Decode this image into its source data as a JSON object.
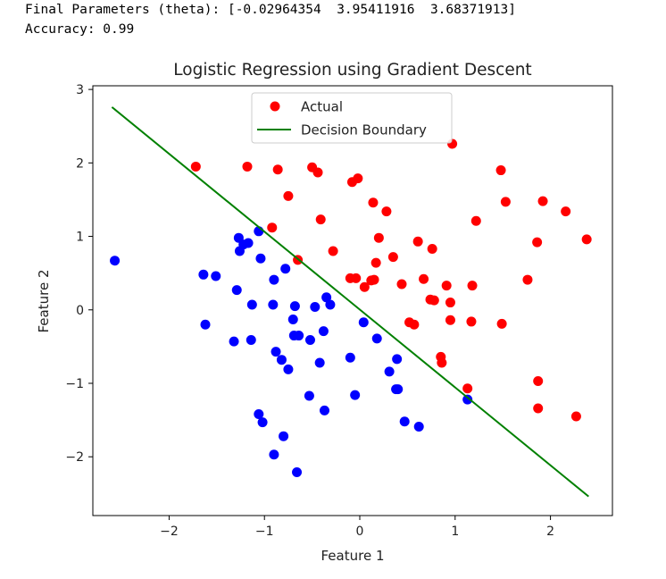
{
  "console": {
    "line1": "Final Parameters (theta): [-0.02964354  3.95411916  3.68371913]",
    "line2": "Accuracy: 0.99"
  },
  "chart_data": {
    "type": "scatter",
    "title": "Logistic Regression using Gradient Descent",
    "xlabel": "Feature 1",
    "ylabel": "Feature 2",
    "xlim": [
      -2.8,
      2.65
    ],
    "ylim": [
      -2.8,
      3.05
    ],
    "xticks": [
      -2,
      -1,
      0,
      1,
      2
    ],
    "yticks": [
      -2,
      -1,
      0,
      1,
      2,
      3
    ],
    "xtick_labels": [
      "−2",
      "−1",
      "0",
      "1",
      "2"
    ],
    "ytick_labels": [
      "−2",
      "−1",
      "0",
      "1",
      "2",
      "3"
    ],
    "legend_position": "top-center",
    "colors": {
      "actual_1": "#ff0000",
      "actual_0": "#0000ff",
      "boundary": "#008000"
    },
    "legend": [
      {
        "label": "Actual",
        "marker": "dot",
        "color": "#ff0000"
      },
      {
        "label": "Decision Boundary",
        "marker": "line",
        "color": "#008000"
      }
    ],
    "decision_boundary": {
      "x": [
        -2.6,
        2.4
      ],
      "y": [
        2.76,
        -2.54
      ]
    },
    "series": [
      {
        "name": "Actual",
        "class": 1,
        "color": "#ff0000",
        "points": [
          [
            -1.72,
            1.95
          ],
          [
            -1.18,
            1.95
          ],
          [
            -0.86,
            1.91
          ],
          [
            -0.5,
            1.94
          ],
          [
            -0.44,
            1.87
          ],
          [
            -0.75,
            1.55
          ],
          [
            -0.08,
            1.74
          ],
          [
            -0.02,
            1.79
          ],
          [
            0.97,
            2.26
          ],
          [
            1.48,
            1.9
          ],
          [
            0.14,
            1.46
          ],
          [
            0.28,
            1.34
          ],
          [
            -0.41,
            1.23
          ],
          [
            -0.92,
            1.12
          ],
          [
            1.53,
            1.47
          ],
          [
            1.92,
            1.48
          ],
          [
            2.16,
            1.34
          ],
          [
            1.22,
            1.21
          ],
          [
            2.38,
            0.96
          ],
          [
            0.2,
            0.98
          ],
          [
            0.61,
            0.93
          ],
          [
            0.76,
            0.83
          ],
          [
            1.86,
            0.92
          ],
          [
            -0.28,
            0.8
          ],
          [
            0.35,
            0.72
          ],
          [
            -0.65,
            0.68
          ],
          [
            0.17,
            0.64
          ],
          [
            -0.1,
            0.43
          ],
          [
            -0.04,
            0.43
          ],
          [
            0.12,
            0.4
          ],
          [
            0.15,
            0.41
          ],
          [
            0.05,
            0.31
          ],
          [
            0.44,
            0.35
          ],
          [
            0.67,
            0.42
          ],
          [
            0.91,
            0.33
          ],
          [
            1.18,
            0.33
          ],
          [
            1.76,
            0.41
          ],
          [
            0.74,
            0.14
          ],
          [
            0.78,
            0.13
          ],
          [
            0.95,
            0.1
          ],
          [
            0.52,
            -0.17
          ],
          [
            0.57,
            -0.2
          ],
          [
            0.95,
            -0.14
          ],
          [
            1.17,
            -0.16
          ],
          [
            1.49,
            -0.19
          ],
          [
            0.85,
            -0.64
          ],
          [
            0.86,
            -0.72
          ],
          [
            1.87,
            -0.97
          ],
          [
            1.13,
            -1.07
          ],
          [
            1.87,
            -1.34
          ],
          [
            2.27,
            -1.45
          ]
        ]
      },
      {
        "name": "",
        "class": 0,
        "color": "#0000ff",
        "points": [
          [
            -2.57,
            0.67
          ],
          [
            -1.64,
            0.48
          ],
          [
            -1.51,
            0.46
          ],
          [
            -1.29,
            0.27
          ],
          [
            -1.13,
            0.07
          ],
          [
            -1.27,
            0.98
          ],
          [
            -1.22,
            0.89
          ],
          [
            -1.26,
            0.8
          ],
          [
            -1.17,
            0.91
          ],
          [
            -1.06,
            1.07
          ],
          [
            -1.04,
            0.7
          ],
          [
            -0.78,
            0.56
          ],
          [
            -0.9,
            0.41
          ],
          [
            -0.91,
            0.07
          ],
          [
            -0.68,
            0.05
          ],
          [
            -0.47,
            0.04
          ],
          [
            -0.35,
            0.17
          ],
          [
            -0.31,
            0.07
          ],
          [
            -1.62,
            -0.2
          ],
          [
            -1.32,
            -0.43
          ],
          [
            -1.14,
            -0.41
          ],
          [
            -0.7,
            -0.13
          ],
          [
            -0.69,
            -0.35
          ],
          [
            -0.64,
            -0.35
          ],
          [
            -0.52,
            -0.41
          ],
          [
            -0.38,
            -0.29
          ],
          [
            0.04,
            -0.17
          ],
          [
            0.18,
            -0.39
          ],
          [
            -0.88,
            -0.57
          ],
          [
            -0.82,
            -0.68
          ],
          [
            -0.75,
            -0.81
          ],
          [
            -0.42,
            -0.72
          ],
          [
            -0.1,
            -0.65
          ],
          [
            0.39,
            -0.67
          ],
          [
            0.31,
            -0.84
          ],
          [
            0.38,
            -1.08
          ],
          [
            0.4,
            -1.08
          ],
          [
            -0.53,
            -1.17
          ],
          [
            -0.05,
            -1.16
          ],
          [
            -0.37,
            -1.37
          ],
          [
            -1.06,
            -1.42
          ],
          [
            -1.02,
            -1.53
          ],
          [
            -0.8,
            -1.72
          ],
          [
            -0.9,
            -1.97
          ],
          [
            -0.66,
            -2.21
          ],
          [
            0.47,
            -1.52
          ],
          [
            0.62,
            -1.59
          ],
          [
            1.13,
            -1.22
          ]
        ]
      }
    ]
  }
}
